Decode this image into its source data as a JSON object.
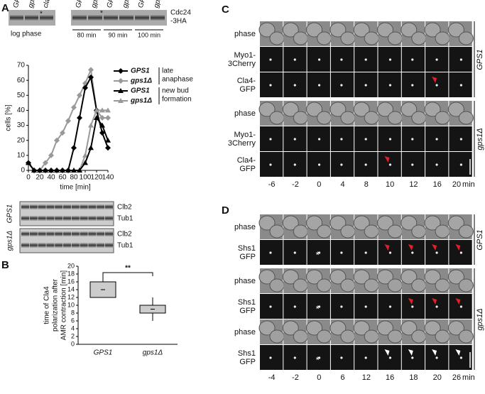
{
  "panel_letters": [
    "A",
    "B",
    "C",
    "D"
  ],
  "blots": {
    "log_lanes": [
      "GPS1",
      "gps1Δ",
      "cla4Δ"
    ],
    "log_label": "log phase",
    "time_lanes": [
      "GPS1",
      "gps1Δ",
      "GPS1",
      "gps1Δ",
      "GPS1",
      "gps1Δ"
    ],
    "times": [
      "80 min",
      "90 min",
      "100 min"
    ],
    "protein": [
      "Cdc24",
      "-3HA"
    ],
    "star": "*",
    "lower": [
      {
        "genotype": "GPS1",
        "bands": [
          "Clb2",
          "Tub1"
        ]
      },
      {
        "genotype": "gps1Δ",
        "bands": [
          "Clb2",
          "Tub1"
        ]
      }
    ]
  },
  "chart_data": [
    {
      "type": "line",
      "x_label": "time [min]",
      "y_label": "cells [%]",
      "x": [
        0,
        10,
        20,
        30,
        40,
        50,
        60,
        70,
        80,
        90,
        100,
        110,
        120,
        130,
        140
      ],
      "series": [
        {
          "name": "GPS1",
          "color": "#000000",
          "marker": "diamond",
          "values": [
            5,
            0,
            0,
            0,
            0,
            0,
            0,
            0,
            15,
            35,
            55,
            62,
            40,
            25,
            15
          ]
        },
        {
          "name": "gps1Δ",
          "color": "#999999",
          "marker": "diamond",
          "values": [
            5,
            0,
            0,
            5,
            10,
            20,
            25,
            33,
            42,
            50,
            58,
            67,
            40,
            35,
            35
          ]
        },
        {
          "name": "GPS1",
          "color": "#000000",
          "marker": "triangle",
          "values": [
            5,
            0,
            0,
            0,
            0,
            0,
            0,
            0,
            0,
            0,
            5,
            15,
            35,
            30,
            20
          ]
        },
        {
          "name": "gps1Δ",
          "color": "#999999",
          "marker": "triangle",
          "values": [
            5,
            0,
            0,
            0,
            0,
            0,
            0,
            0,
            0,
            0,
            10,
            30,
            40,
            40,
            40
          ]
        }
      ],
      "legend_groups": [
        [
          "late",
          "anaphase"
        ],
        [
          "new bud",
          "formation"
        ]
      ],
      "xlim": [
        0,
        140
      ],
      "ylim": [
        0,
        70
      ],
      "xticks": [
        0,
        20,
        40,
        60,
        80,
        100,
        120,
        140
      ],
      "yticks": [
        0,
        10,
        20,
        30,
        40,
        50,
        60,
        70
      ]
    },
    {
      "type": "box",
      "y_label": [
        "time of Cla4",
        "polarization after",
        "AMR contraction [min]"
      ],
      "categories": [
        "GPS1",
        "gps1Δ"
      ],
      "boxes": [
        {
          "min": 12,
          "q1": 12,
          "median": 14,
          "q3": 16,
          "max": 18
        },
        {
          "min": 6,
          "q1": 8,
          "median": 9,
          "q3": 10,
          "max": 12
        }
      ],
      "color": "#cccccc",
      "significance": "**",
      "ylim": [
        0,
        20
      ],
      "yticks": [
        0,
        2,
        4,
        6,
        8,
        10,
        12,
        14,
        16,
        18,
        20
      ]
    }
  ],
  "microscopy": {
    "C": {
      "groups": [
        {
          "genotype": "GPS1",
          "rows": [
            [
              "phase"
            ],
            [
              "Myo1-",
              "3Cherry"
            ],
            [
              "Cla4-",
              "GFP"
            ]
          ]
        },
        {
          "genotype": "gps1Δ",
          "rows": [
            [
              "phase"
            ],
            [
              "Myo1-",
              "3Cherry"
            ],
            [
              "Cla4-",
              "GFP"
            ]
          ]
        }
      ],
      "times": [
        -6,
        -2,
        0,
        4,
        8,
        10,
        12,
        16,
        20
      ],
      "unit": "min"
    },
    "D": {
      "groups": [
        {
          "genotype": "GPS1",
          "rows": [
            [
              "phase"
            ],
            [
              "Shs1",
              "GFP"
            ]
          ]
        },
        {
          "genotype": "gps1Δ",
          "rows": [
            [
              "phase"
            ],
            [
              "Shs1",
              "GFP"
            ],
            [
              "phase"
            ],
            [
              "Shs1",
              "GFP"
            ]
          ]
        }
      ],
      "times": [
        -4,
        -2,
        0,
        6,
        12,
        16,
        18,
        20,
        26
      ],
      "unit": "min",
      "asterisk": "*"
    }
  }
}
